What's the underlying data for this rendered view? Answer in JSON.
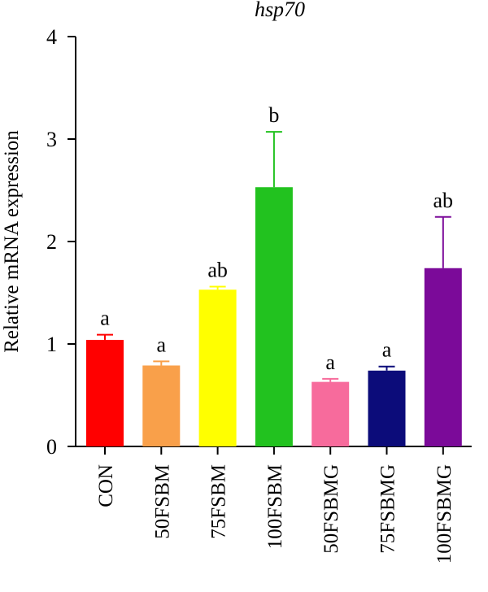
{
  "chart_data": {
    "type": "bar",
    "title": "hsp70",
    "xlabel": "",
    "ylabel": "Relative mRNA expression",
    "ylim": [
      0,
      4
    ],
    "yticks": [
      "0",
      "1",
      "2",
      "3",
      "4"
    ],
    "categories": [
      "CON",
      "50FSBM",
      "75FSBM",
      "100FSBM",
      "50FSBMG",
      "75FSBMG",
      "100FSBMG"
    ],
    "values": [
      1.04,
      0.79,
      1.53,
      2.53,
      0.63,
      0.74,
      1.74
    ],
    "errors": [
      0.05,
      0.04,
      0.03,
      0.54,
      0.03,
      0.04,
      0.5
    ],
    "significance": [
      "a",
      "a",
      "ab",
      "b",
      "a",
      "a",
      "ab"
    ],
    "colors": [
      "#ff0000",
      "#f9a04a",
      "#ffff00",
      "#22c21f",
      "#f76b9c",
      "#0c0c7a",
      "#7b0a99"
    ],
    "grid": false,
    "legend": "none"
  }
}
